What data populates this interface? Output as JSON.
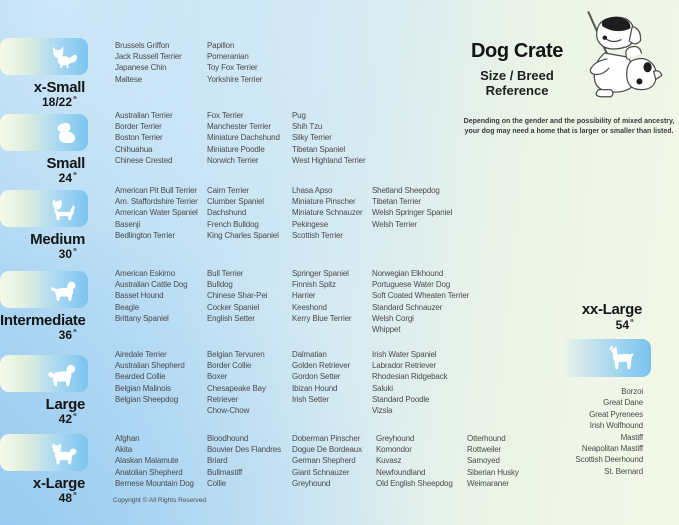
{
  "header": {
    "title": "Dog Crate",
    "subtitle": [
      "Size / Breed",
      "Reference"
    ],
    "note": [
      "Depending on the gender and the possibility of mixed ancestry,",
      "your dog may need a home that is larger or smaller than listed."
    ],
    "illustration_icon": "dog-teacher-cartoon"
  },
  "footer": {
    "copyright": "Copyright © All Rights Reserved"
  },
  "inch_symbol": "“",
  "colors": {
    "background_blue": "#aed7f3",
    "background_green": "#f4f8e8",
    "badge_blue": "#7cc4ee",
    "badge_cream": "#f8fae9",
    "title_text": "#151515",
    "breed_text": "#4b4b4b"
  },
  "size_classes": [
    {
      "name": "x-Small",
      "inches": "18/22",
      "icon": "papillon-silhouette",
      "columns": [
        [
          "Brussels Griffon",
          "Jack Russell Terrier",
          "Japanese Chin",
          "Maltese"
        ],
        [
          "Papillon",
          "Pomeranian",
          "Toy Fox Terrier",
          "Yorkshire Terrier"
        ]
      ]
    },
    {
      "name": "Small",
      "inches": "24",
      "icon": "shih-tzu-silhouette",
      "columns": [
        [
          "Australian Terrier",
          "Border Terrier",
          "Boston Terrier",
          "Chihuahua",
          "Chinese Crested"
        ],
        [
          "Fox Terrier",
          "Manchester Terrier",
          "Miniature Dachshund",
          "Miniature Poodle",
          "Norwich Terrier"
        ],
        [
          "Pug",
          "Shih Tzu",
          "Silky Terrier",
          "Tibetan Spaniel",
          "West Highland Terrier"
        ]
      ]
    },
    {
      "name": "Medium",
      "inches": "30",
      "icon": "westie-silhouette",
      "columns": [
        [
          "American Pit Bull Terrier",
          "Am. Staffordshire Terrier",
          "American Water Spaniel",
          "Basenji",
          "Bedlington Terrier"
        ],
        [
          "Cairn Terrier",
          "Clumber Spaniel",
          "Dachshund",
          "French Bulldog",
          "King Charles Spaniel"
        ],
        [
          "Lhasa Apso",
          "Miniature Pinscher",
          "Miniature Schnauzer",
          "Pekingese",
          "Scottish Terrier"
        ],
        [
          "Shetland Sheepdog",
          "Tibetan Terrier",
          "Welsh Springer Spaniel",
          "Welsh Terrier"
        ]
      ]
    },
    {
      "name": "Intermediate",
      "inches": "36",
      "icon": "spaniel-silhouette",
      "columns": [
        [
          "American Eskimo",
          "Australian Cattle Dog",
          "Basset Hound",
          "Beagle",
          "Brittany Spaniel"
        ],
        [
          "Bull Terrier",
          "Bulldog",
          "Chinese Shar-Pei",
          "Cocker Spaniel",
          "English Setter"
        ],
        [
          "Springer Spaniel",
          "Finnish Spitz",
          "Harrier",
          "Keeshond",
          "Kerry Blue Terrier"
        ],
        [
          "Norwegian Elkhound",
          "Portuguese Water Dog",
          "Soft Coated Wheaten Terrier",
          "Standard Schnauzer",
          "Welsh Corgi",
          "Whippet"
        ]
      ]
    },
    {
      "name": "Large",
      "inches": "42",
      "icon": "retriever-silhouette",
      "columns": [
        [
          "Airedale Terrier",
          "Australian Shepherd",
          "Bearded Collie",
          "Belgian Malinois",
          "Belgian Sheepdog"
        ],
        [
          "Belgian Tervuren",
          "Border Collie",
          "Boxer",
          "Chesapeake Bay\nRetriever",
          "Chow-Chow"
        ],
        [
          "Dalmatian",
          "Golden Retriever",
          "Gordon Setter",
          "Ibizan Hound",
          "Irish Setter"
        ],
        [
          "Irish Water Spaniel",
          "Labrador Retriever",
          "Rhodesian Ridgeback",
          "Saluki",
          "Standard Poodle",
          "Vizsla"
        ]
      ]
    },
    {
      "name": "x-Large",
      "inches": "48",
      "icon": "akita-silhouette",
      "columns": [
        [
          "Afghan",
          "Akita",
          "Alaskan Malamute",
          "Anatolian Shepherd",
          "Bernese Mountain Dog"
        ],
        [
          "Bloodhound",
          "Bouvier Des Flandres",
          "Briard",
          "Bullmastiff",
          "Collie"
        ],
        [
          "Doberman Pinscher",
          "Dogue De Bordeaux",
          "German Shepherd",
          "Giant Schnauzer",
          "Greyhound"
        ],
        [
          "Greyhound",
          "Komondor",
          "Kuvasz",
          "Newfoundland",
          "Old English Sheepdog"
        ],
        [
          "Otterhound",
          "Rottweiler",
          "Samoyed",
          "Siberian Husky",
          "Weimaraner"
        ]
      ]
    },
    {
      "name": "xx-Large",
      "inches": "54",
      "icon": "great-dane-silhouette",
      "columns": [
        [
          "Borzoi",
          "Great Dane",
          "Great Pyrenees",
          "Irish Wolfhound",
          "Mastiff",
          "Neapolitan Mastiff",
          "Scottish Deerhound",
          "St. Bernard"
        ]
      ]
    }
  ]
}
